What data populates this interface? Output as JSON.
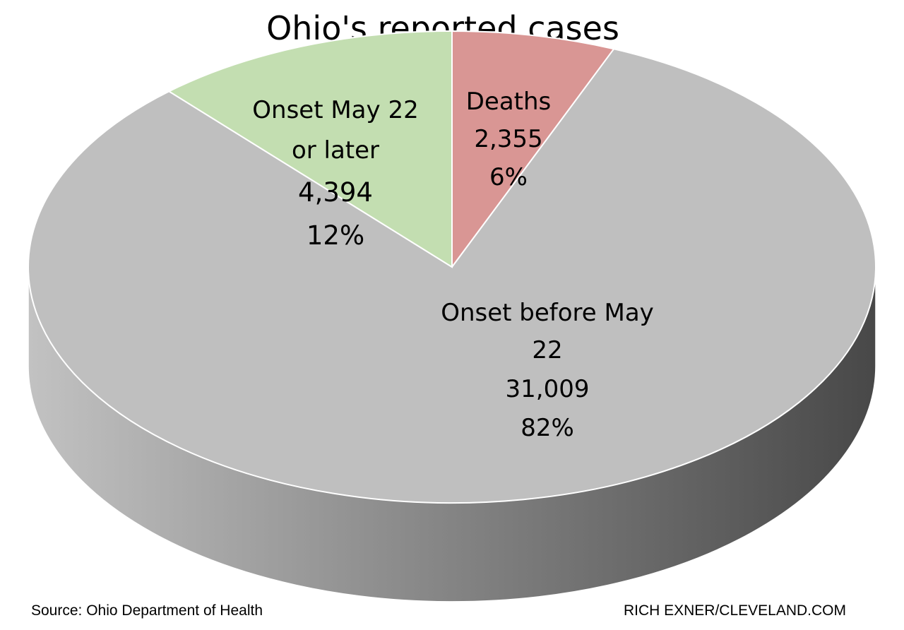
{
  "chart_data": {
    "type": "pie",
    "title": "Ohio's reported cases",
    "is_3d": true,
    "slices": [
      {
        "label_lines": [
          "Deaths"
        ],
        "value": 2355,
        "value_text": "2,355",
        "percent": 6,
        "percent_text": "6%",
        "color": "#d99694"
      },
      {
        "label_lines": [
          "Onset before May",
          "22"
        ],
        "value": 31009,
        "value_text": "31,009",
        "percent": 82,
        "percent_text": "82%",
        "color": "#bfbfbf"
      },
      {
        "label_lines": [
          "Onset May 22",
          "or later"
        ],
        "value": 4394,
        "value_text": "4,394",
        "percent": 12,
        "percent_text": "12%",
        "color": "#c3deb1"
      }
    ]
  },
  "footer": {
    "source": "Source: Ohio Department of Health",
    "credit": "RICH EXNER/CLEVELAND.COM"
  }
}
